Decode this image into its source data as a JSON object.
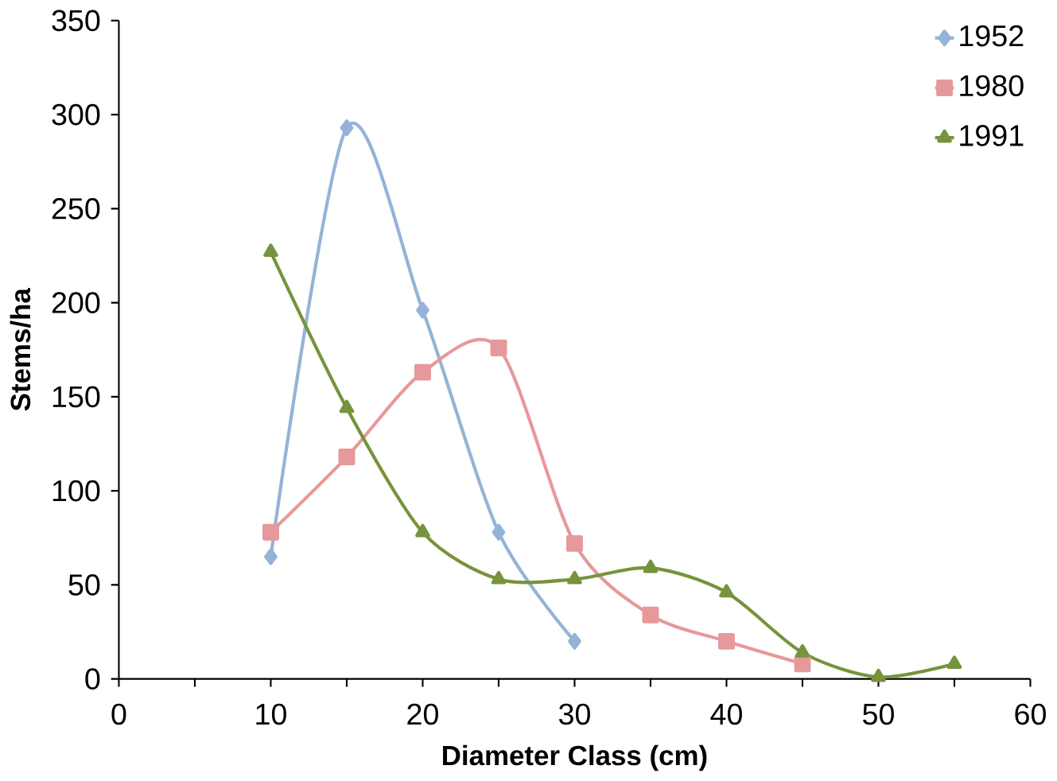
{
  "chart_data": {
    "type": "line",
    "xlabel": "Diameter Class (cm)",
    "ylabel": "Stems/ha",
    "x": [
      10,
      15,
      20,
      25,
      30,
      35,
      40,
      45,
      50,
      55
    ],
    "series": [
      {
        "name": "1952",
        "color": "#95b3d7",
        "marker": "diamond",
        "values": [
          65,
          293,
          196,
          78,
          20,
          null,
          null,
          null,
          null,
          null
        ]
      },
      {
        "name": "1980",
        "color": "#e6999a",
        "marker": "square",
        "values": [
          78,
          118,
          163,
          176,
          72,
          34,
          20,
          8,
          null,
          null
        ]
      },
      {
        "name": "1991",
        "color": "#77933c",
        "marker": "triangle",
        "values": [
          227,
          144,
          78,
          53,
          53,
          59,
          46,
          14,
          1,
          8
        ]
      }
    ],
    "xlim": [
      0,
      60
    ],
    "ylim": [
      0,
      350
    ],
    "xticks": [
      0,
      {
        "value": 5,
        "label": null
      },
      10,
      {
        "value": 15,
        "label": null
      },
      20,
      {
        "value": 25,
        "label": null
      },
      30,
      {
        "value": 35,
        "label": null
      },
      40,
      {
        "value": 45,
        "label": null
      },
      50,
      {
        "value": 55,
        "label": null
      },
      60
    ],
    "yticks": [
      0,
      50,
      100,
      150,
      200,
      250,
      300,
      350
    ],
    "grid": false,
    "legend": "top right",
    "line_style": "solid"
  }
}
